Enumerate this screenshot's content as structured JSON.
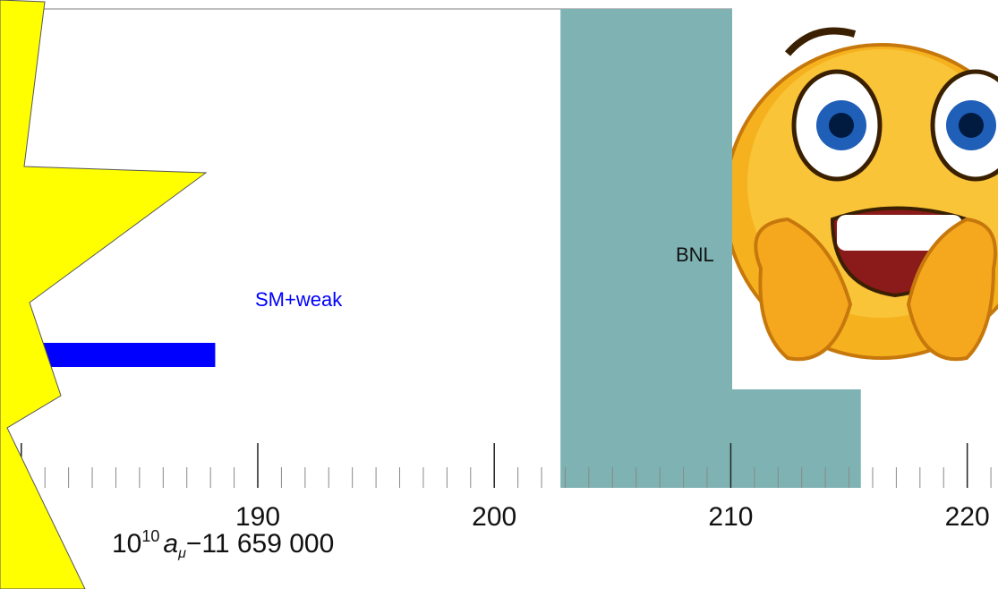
{
  "chart_data": {
    "type": "interval",
    "xlim": [
      179.1,
      221.3
    ],
    "xticks": [
      180,
      190,
      200,
      210,
      220
    ],
    "xminor": 1,
    "xlabel": {
      "base": "10",
      "exp": "10",
      "var": "a",
      "sub": "μ",
      "rest": "−11 659 000"
    },
    "intervals": [
      {
        "name": "SM+weak",
        "range": [
          176,
          188.2
        ],
        "color": "#0000ff",
        "kind": "bar"
      },
      {
        "name": "BNL",
        "range": [
          202.8,
          215.5
        ],
        "color": "#7fb3b3",
        "kind": "band"
      }
    ]
  }
}
